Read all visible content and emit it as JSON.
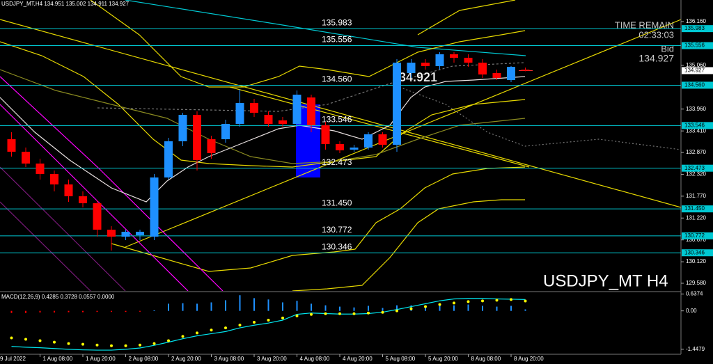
{
  "chart_data": [
    {
      "type": "candlestick",
      "title": "USDJPY_MT,H4  134.951 135.002 134.911 134.927",
      "watermark": "USDJPY_MT H4",
      "annotation": 134.921,
      "info": {
        "time_remain_label": "TIME REMAIN",
        "time_remain": "02:33:03",
        "bid_label": "Bid",
        "bid": 134.927
      },
      "bull_color": "#1e90ff",
      "bear_color": "#ff0000",
      "level_color": "#00c8d2",
      "ylim": [
        129.387,
        136.703
      ],
      "yticks": [
        {
          "value": 136.16,
          "label": "136.160"
        },
        {
          "value": 135.06,
          "label": "135.060"
        },
        {
          "value": 133.96,
          "label": "133.960"
        },
        {
          "value": 133.41,
          "label": "133.410"
        },
        {
          "value": 132.87,
          "label": "132.870"
        },
        {
          "value": 132.32,
          "label": "132.320"
        },
        {
          "value": 131.77,
          "label": "131.770"
        },
        {
          "value": 131.22,
          "label": "131.220"
        },
        {
          "value": 130.67,
          "label": "130.670"
        },
        {
          "value": 130.12,
          "label": "130.120"
        },
        {
          "value": 129.58,
          "label": "129.580"
        }
      ],
      "levels": [
        135.983,
        135.556,
        {
          "value": 134.56,
          "label": "134.560"
        },
        133.546,
        132.473,
        {
          "value": 131.45,
          "label": "131.450"
        },
        130.772,
        130.346
      ],
      "x_labels": [
        "9 Jul 2022",
        "1 Aug 08:00",
        "1 Aug 20:00",
        "2 Aug 08:00",
        "2 Aug 20:00",
        "3 Aug 08:00",
        "3 Aug 20:00",
        "4 Aug 08:00",
        "4 Aug 20:00",
        "5 Aug 08:00",
        "5 Aug 20:00",
        "8 Aug 08:00",
        "8 Aug 20:00"
      ],
      "candles": [
        {
          "open": 133.202,
          "high": 133.377,
          "low": 132.765,
          "close": 132.887
        },
        {
          "open": 132.887,
          "high": 132.992,
          "low": 132.502,
          "close": 132.59
        },
        {
          "open": 132.59,
          "high": 132.712,
          "low": 132.187,
          "close": 132.327
        },
        {
          "open": 132.327,
          "high": 132.415,
          "low": 131.89,
          "close": 132.065
        },
        {
          "open": 132.065,
          "high": 132.187,
          "low": 131.627,
          "close": 131.767
        },
        {
          "open": 131.767,
          "high": 131.89,
          "low": 131.487,
          "close": 131.592
        },
        {
          "open": 131.592,
          "high": 131.662,
          "low": 130.752,
          "close": 130.927
        },
        {
          "open": 130.927,
          "high": 131.015,
          "low": 130.402,
          "close": 130.752
        },
        {
          "open": 130.752,
          "high": 130.927,
          "low": 130.665,
          "close": 130.875
        },
        {
          "open": 130.787,
          "high": 130.927,
          "low": 130.665,
          "close": 130.875
        },
        {
          "open": 130.752,
          "high": 132.327,
          "low": 130.665,
          "close": 132.24
        },
        {
          "open": 132.24,
          "high": 133.237,
          "low": 132.187,
          "close": 133.15
        },
        {
          "open": 133.15,
          "high": 133.867,
          "low": 133.027,
          "close": 133.815
        },
        {
          "open": 133.815,
          "high": 133.902,
          "low": 132.415,
          "close": 132.677
        },
        {
          "open": 133.202,
          "high": 133.29,
          "low": 132.712,
          "close": 132.852
        },
        {
          "open": 133.202,
          "high": 133.692,
          "low": 133.115,
          "close": 133.587
        },
        {
          "open": 133.587,
          "high": 134.462,
          "low": 133.517,
          "close": 134.112
        },
        {
          "open": 134.112,
          "high": 134.217,
          "low": 133.762,
          "close": 133.867
        },
        {
          "open": 133.815,
          "high": 133.902,
          "low": 133.517,
          "close": 133.587
        },
        {
          "open": 133.675,
          "high": 133.762,
          "low": 133.517,
          "close": 133.587
        },
        {
          "open": 133.587,
          "high": 134.427,
          "low": 133.517,
          "close": 134.322
        },
        {
          "open": 134.252,
          "high": 134.322,
          "low": 133.377,
          "close": 133.552
        },
        {
          "open": 133.552,
          "high": 133.64,
          "low": 132.94,
          "close": 133.08
        },
        {
          "open": 133.08,
          "high": 133.15,
          "low": 132.852,
          "close": 132.922
        },
        {
          "open": 132.94,
          "high": 133.062,
          "low": 132.887,
          "close": 132.992
        },
        {
          "open": 132.992,
          "high": 133.377,
          "low": 132.94,
          "close": 133.325
        },
        {
          "open": 133.325,
          "high": 133.377,
          "low": 132.992,
          "close": 133.062
        },
        {
          "open": 133.062,
          "high": 135.215,
          "low": 132.887,
          "close": 135.127
        },
        {
          "open": 134.865,
          "high": 135.215,
          "low": 134.742,
          "close": 135.127
        },
        {
          "open": 135.127,
          "high": 135.215,
          "low": 134.952,
          "close": 135.04
        },
        {
          "open": 135.04,
          "high": 135.39,
          "low": 134.952,
          "close": 135.338
        },
        {
          "open": 135.338,
          "high": 135.39,
          "low": 135.127,
          "close": 135.25
        },
        {
          "open": 135.25,
          "high": 135.338,
          "low": 135.022,
          "close": 135.127
        },
        {
          "open": 135.127,
          "high": 135.215,
          "low": 134.742,
          "close": 134.83
        },
        {
          "open": 134.865,
          "high": 134.952,
          "low": 134.69,
          "close": 134.742
        },
        {
          "open": 134.69,
          "high": 135.04,
          "low": 134.637,
          "close": 135.022
        },
        {
          "open": 134.951,
          "high": 135.002,
          "low": 134.911,
          "close": 134.927
        }
      ]
    },
    {
      "type": "macd",
      "title": "MACD(12,26,9) 0.4285 0.3728 0.0557 0.0000",
      "ylim": [
        -1.61,
        0.7
      ],
      "yticks": [
        0.6374,
        {
          "value": 0,
          "label": "0.00"
        },
        -1.4479
      ],
      "histogram": {
        "color": "#1e90ff",
        "negative_color": "#ff0000",
        "values": [
          -0.08,
          -0.08,
          -0.06,
          -0.06,
          -0.05,
          -0.05,
          -0.04,
          -0.04,
          -0.04,
          -0.03,
          0.02,
          0.27,
          0.29,
          0.27,
          0.32,
          0.4,
          0.59,
          0.48,
          0.43,
          0.32,
          0.38,
          0.27,
          0.21,
          0.16,
          0.13,
          0.19,
          0.11,
          0.21,
          0.21,
          0.19,
          0.19,
          0.21,
          0.24,
          0.19,
          0.16,
          0.19,
          0.0557
        ]
      },
      "main": {
        "color": "#00e5ee",
        "values": [
          -1.34,
          -1.37,
          -1.39,
          -1.42,
          -1.45,
          -1.47,
          -1.48,
          -1.48,
          -1.45,
          -1.4,
          -1.3,
          -1.18,
          -1.05,
          -0.94,
          -0.86,
          -0.78,
          -0.64,
          -0.54,
          -0.46,
          -0.35,
          -0.13,
          -0.08,
          -0.1,
          -0.12,
          -0.12,
          -0.1,
          -0.05,
          0.05,
          0.16,
          0.27,
          0.38,
          0.45,
          0.47,
          0.47,
          0.45,
          0.44,
          0.4285
        ]
      },
      "signal": {
        "color": "#ffff00",
        "values": [
          -1.019,
          -1.072,
          -1.126,
          -1.18,
          -1.233,
          -1.26,
          -1.287,
          -1.314,
          -1.314,
          -1.287,
          -1.233,
          -1.126,
          -0.965,
          -0.831,
          -0.724,
          -0.643,
          -0.536,
          -0.429,
          -0.349,
          -0.268,
          -0.188,
          -0.134,
          -0.107,
          -0.107,
          -0.107,
          -0.08,
          -0.054,
          0,
          0.08,
          0.161,
          0.241,
          0.295,
          0.349,
          0.375,
          0.402,
          0.429,
          0.3728
        ]
      }
    }
  ]
}
